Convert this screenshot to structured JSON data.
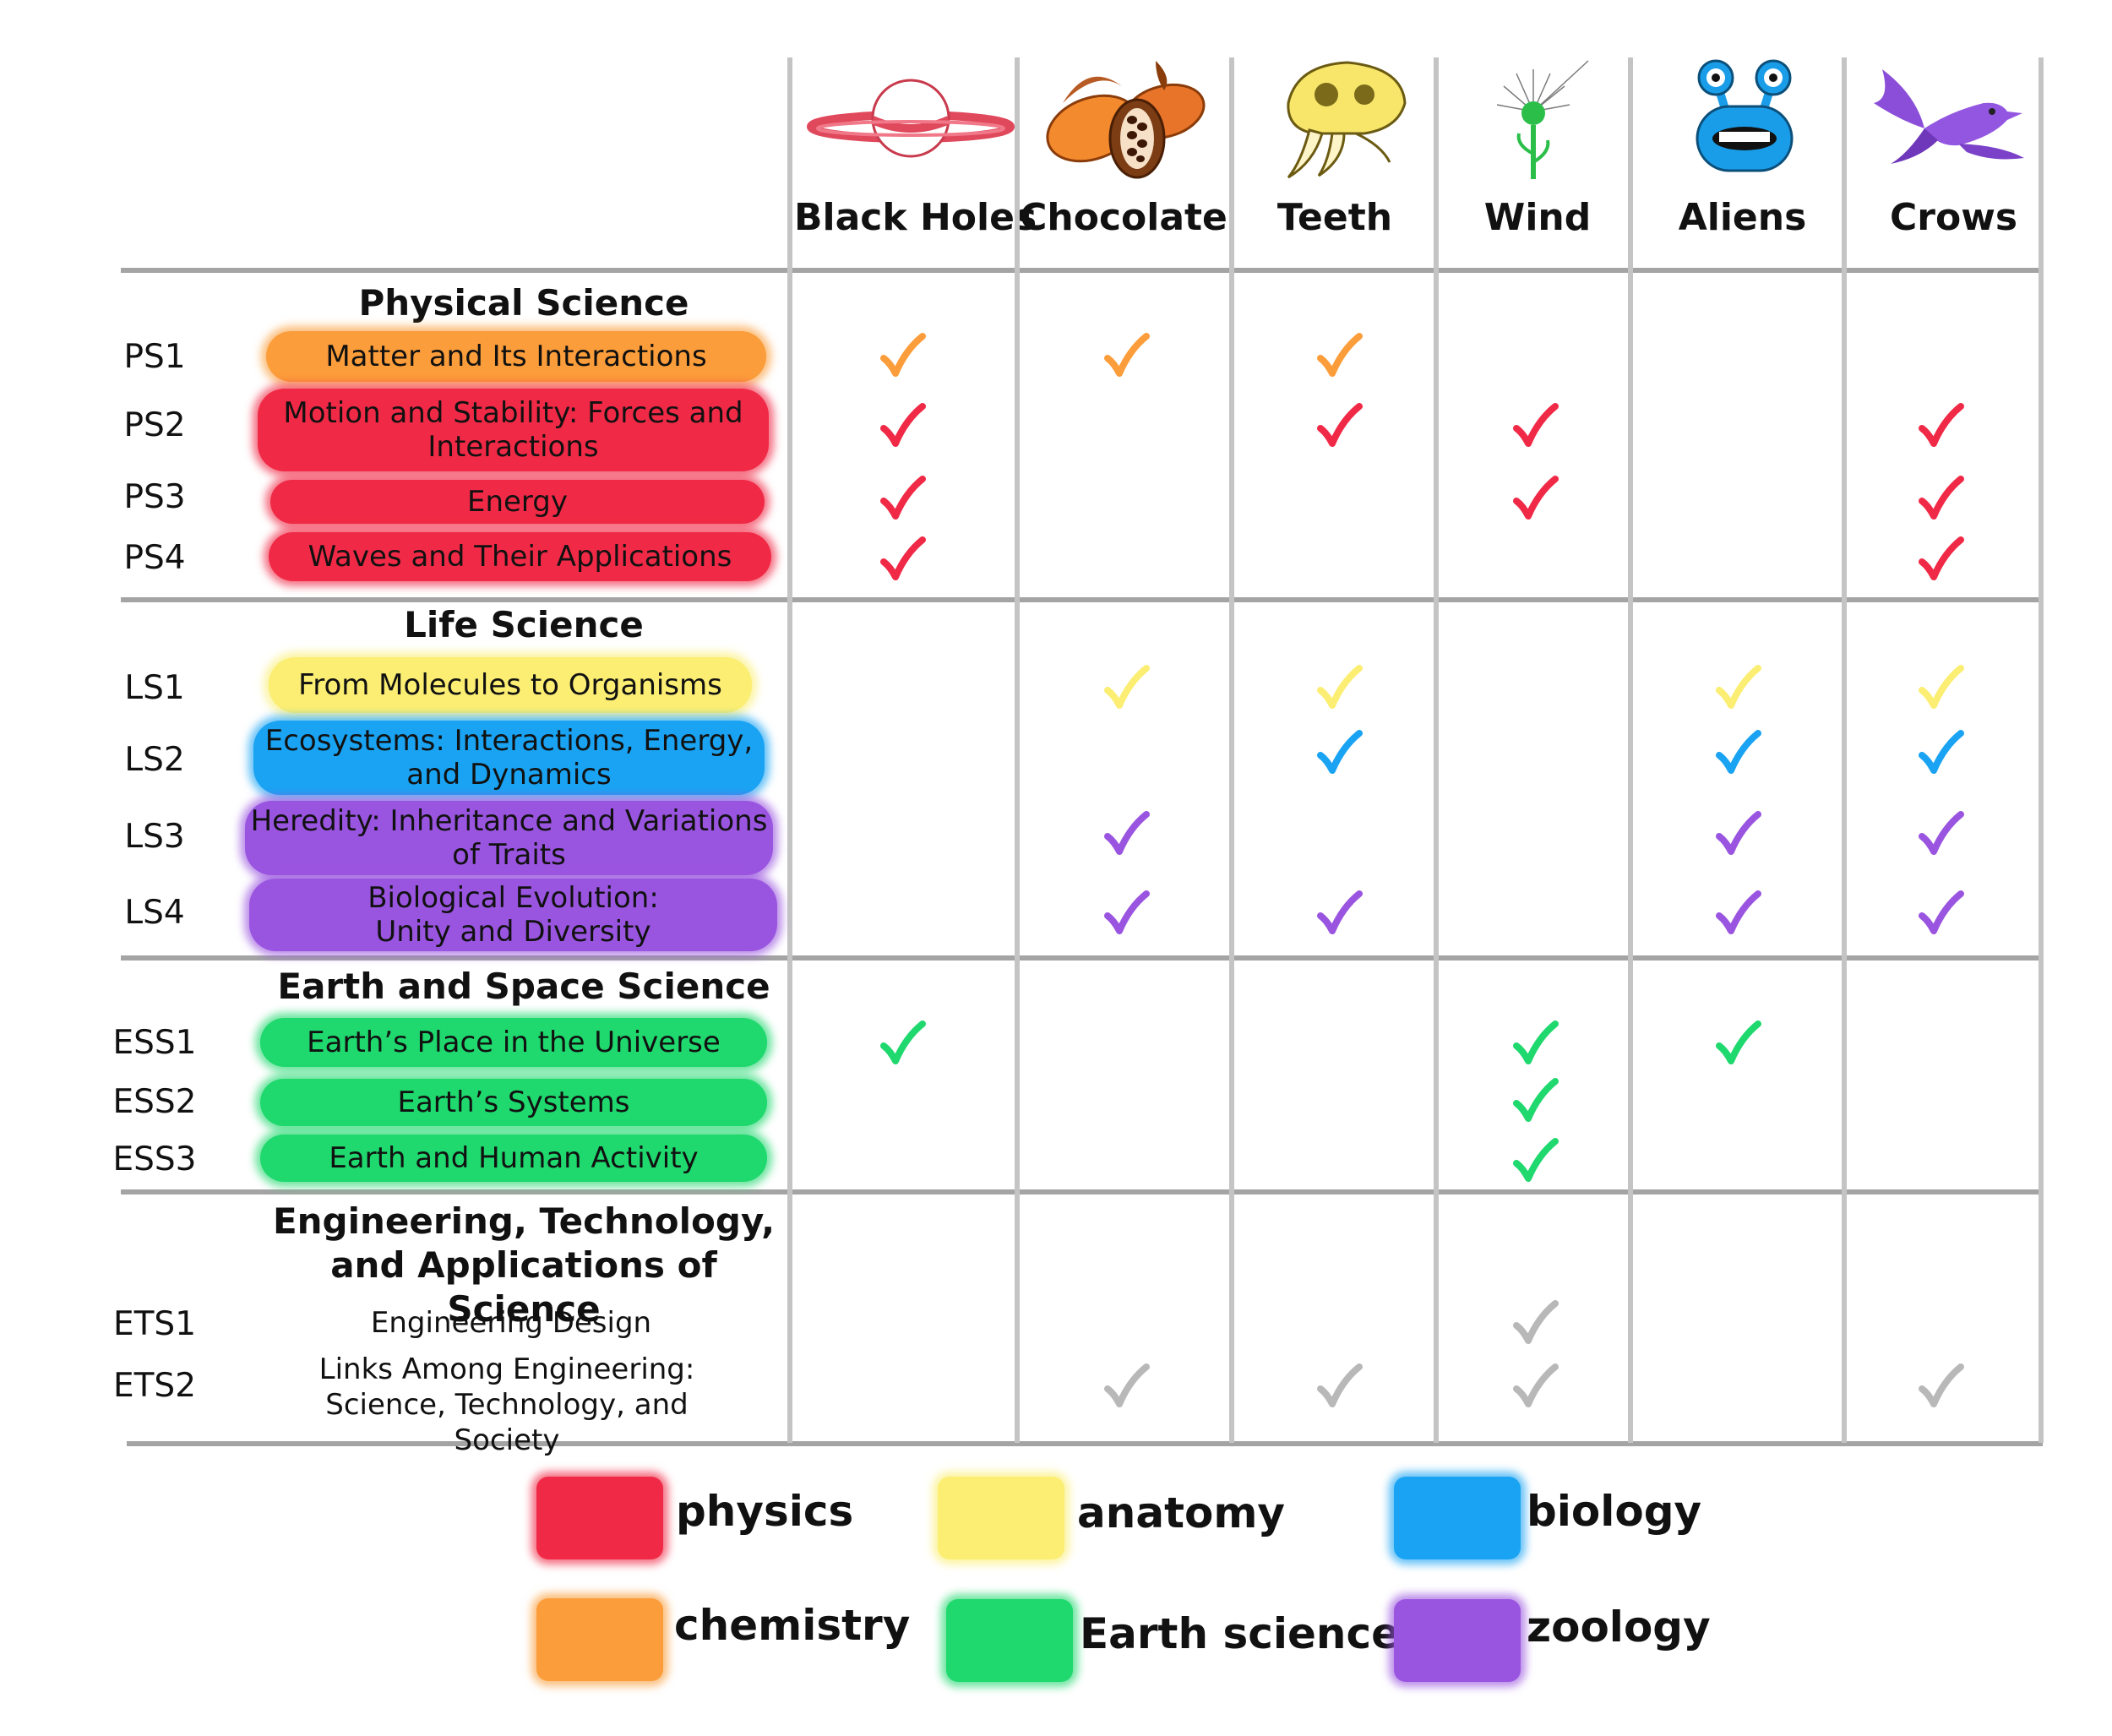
{
  "colors": {
    "physics": "#f02a46",
    "chemistry": "#fb9d3a",
    "anatomy": "#fbee73",
    "biology": "#1aa3f3",
    "earth": "#1fd86e",
    "zoology": "#9a55e0",
    "engineering": "#b8b8b8"
  },
  "columns": [
    {
      "key": "black_holes",
      "label": "Black Holes",
      "icon": "planet-icon"
    },
    {
      "key": "chocolate",
      "label": "Chocolate",
      "icon": "cacao-pod-icon"
    },
    {
      "key": "teeth",
      "label": "Teeth",
      "icon": "sabertooth-skull-icon"
    },
    {
      "key": "wind",
      "label": "Wind",
      "icon": "dandelion-icon"
    },
    {
      "key": "aliens",
      "label": "Aliens",
      "icon": "alien-icon"
    },
    {
      "key": "crows",
      "label": "Crows",
      "icon": "bird-icon"
    }
  ],
  "sections": [
    {
      "title": "Physical Science",
      "rows": [
        {
          "code": "PS1",
          "label": "Matter and Its Interactions",
          "color": "chemistry",
          "checks": [
            1,
            1,
            1,
            0,
            0,
            0
          ]
        },
        {
          "code": "PS2",
          "label": "Motion and Stability: Forces and Interactions",
          "color": "physics",
          "checks": [
            1,
            0,
            1,
            1,
            0,
            1
          ]
        },
        {
          "code": "PS3",
          "label": "Energy",
          "color": "physics",
          "checks": [
            1,
            0,
            0,
            1,
            0,
            1
          ]
        },
        {
          "code": "PS4",
          "label": "Waves and Their Applications",
          "color": "physics",
          "checks": [
            1,
            0,
            0,
            0,
            0,
            1
          ]
        }
      ]
    },
    {
      "title": "Life Science",
      "rows": [
        {
          "code": "LS1",
          "label": "From Molecules to Organisms",
          "color": "anatomy",
          "checks": [
            0,
            1,
            1,
            0,
            1,
            1
          ]
        },
        {
          "code": "LS2",
          "label": "Ecosystems: Interactions,  Energy, and Dynamics",
          "color": "biology",
          "checks": [
            0,
            0,
            1,
            0,
            1,
            1
          ]
        },
        {
          "code": "LS3",
          "label": "Heredity: Inheritance and Variations of Traits",
          "color": "zoology",
          "checks": [
            0,
            1,
            0,
            0,
            1,
            1
          ]
        },
        {
          "code": "LS4",
          "label": "Biological Evolution: Unity and Diversity",
          "color": "zoology",
          "checks": [
            0,
            1,
            1,
            0,
            1,
            1
          ]
        }
      ]
    },
    {
      "title": "Earth and Space Science",
      "rows": [
        {
          "code": "ESS1",
          "label": "Earth’s Place in the Universe",
          "color": "earth",
          "checks": [
            1,
            0,
            0,
            1,
            1,
            0
          ]
        },
        {
          "code": "ESS2",
          "label": "Earth’s Systems",
          "color": "earth",
          "checks": [
            0,
            0,
            0,
            1,
            0,
            0
          ]
        },
        {
          "code": "ESS3",
          "label": "Earth and Human Activity",
          "color": "earth",
          "checks": [
            0,
            0,
            0,
            1,
            0,
            0
          ]
        }
      ]
    },
    {
      "title": "Engineering, Technology, and Applications of Science",
      "rows": [
        {
          "code": "ETS1",
          "label": "Engineering Design",
          "color": "engineering",
          "checks": [
            0,
            0,
            0,
            1,
            0,
            0
          ]
        },
        {
          "code": "ETS2",
          "label": "Links Among Engineering: Science, Technology, and Society",
          "color": "engineering",
          "checks": [
            0,
            1,
            1,
            1,
            0,
            1
          ]
        }
      ]
    }
  ],
  "legend": [
    {
      "label": "physics",
      "color": "physics"
    },
    {
      "label": "anatomy",
      "color": "anatomy"
    },
    {
      "label": "biology",
      "color": "biology"
    },
    {
      "label": "chemistry",
      "color": "chemistry"
    },
    {
      "label": "Earth science",
      "color": "earth"
    },
    {
      "label": "zoology",
      "color": "zoology"
    }
  ]
}
